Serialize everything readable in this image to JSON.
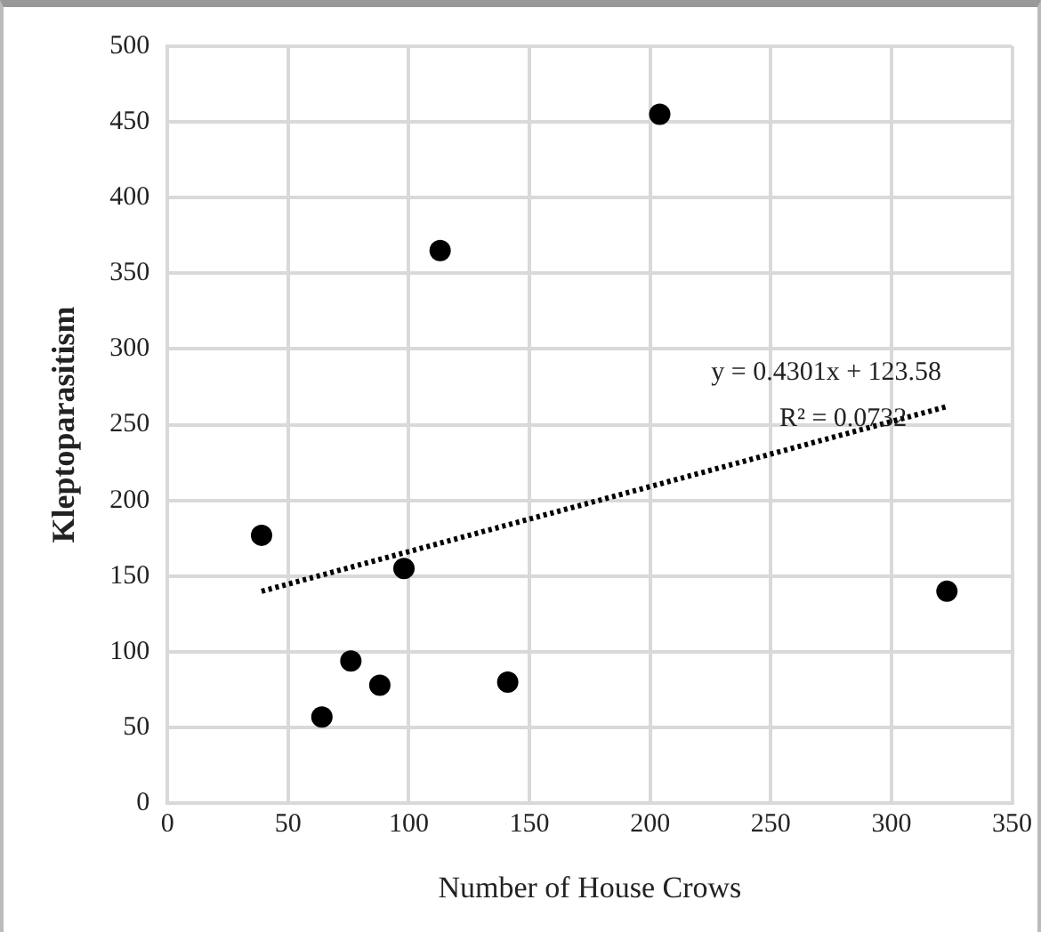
{
  "chart_data": {
    "type": "scatter",
    "xlabel": "Number of House Crows",
    "ylabel": "Kleptoparasitism",
    "xlim": [
      0,
      350
    ],
    "xticks": [
      0,
      50,
      100,
      150,
      200,
      250,
      300,
      350
    ],
    "ylim": [
      0,
      500
    ],
    "yticks": [
      0,
      50,
      100,
      150,
      200,
      250,
      300,
      350,
      400,
      450,
      500
    ],
    "grid": true,
    "marker": "circle",
    "series": [
      {
        "type": "scatter",
        "color": "#000000",
        "x": [
          39,
          64,
          76,
          88,
          98,
          113,
          141,
          204,
          323
        ],
        "values": [
          177,
          57,
          94,
          78,
          155,
          365,
          80,
          455,
          140
        ]
      },
      {
        "type": "line",
        "color": "#000000",
        "line_style": "dotted",
        "marker": "none",
        "x": [
          39,
          323
        ],
        "values": [
          140,
          262
        ]
      }
    ],
    "annotations": [
      "y = 0.4301x + 123.58",
      "R² = 0.0732"
    ]
  }
}
